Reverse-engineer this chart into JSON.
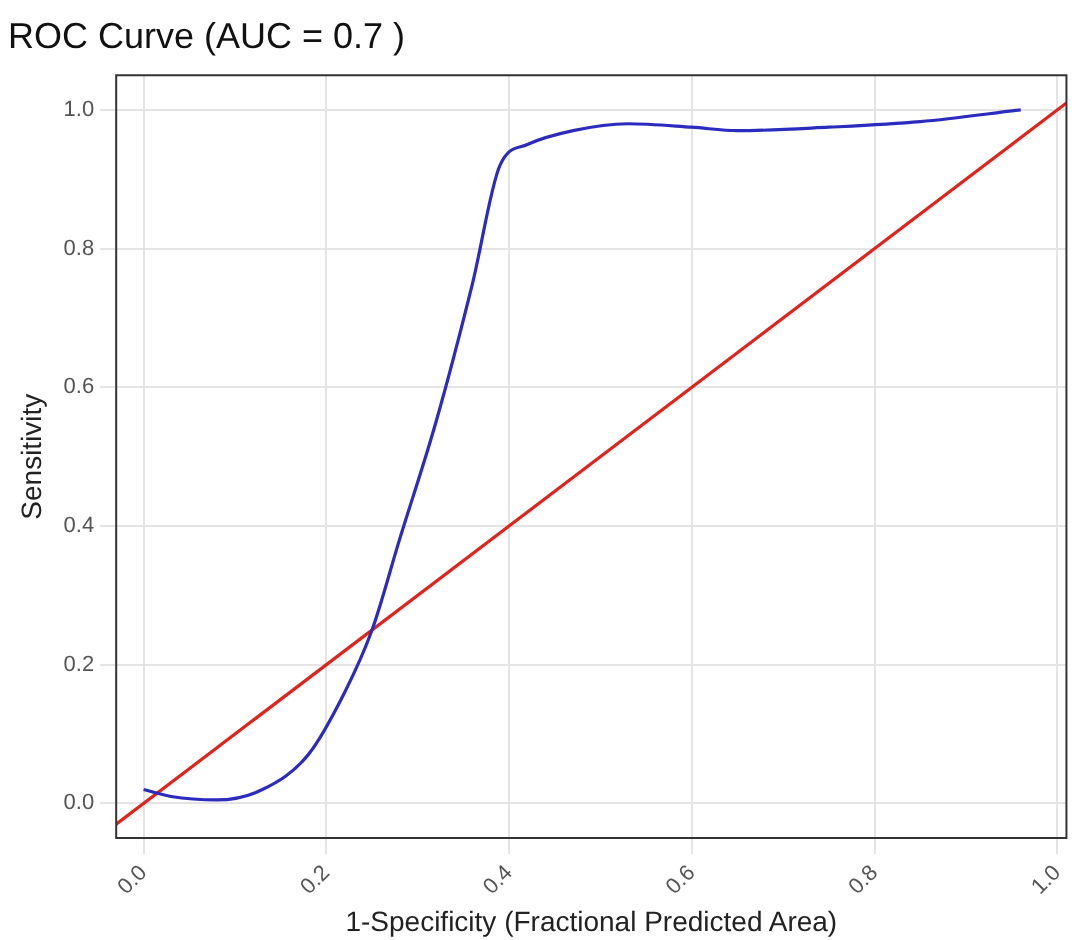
{
  "chart_data": {
    "type": "line",
    "title": "ROC Curve (AUC = 0.7 )",
    "xlabel": "1-Specificity (Fractional Predicted Area)",
    "ylabel": "Sensitivity",
    "xlim": [
      -0.03,
      1.01
    ],
    "ylim": [
      -0.05,
      1.05
    ],
    "xticks": [
      {
        "value": 0,
        "label": "0.0"
      },
      {
        "value": 0.2,
        "label": "0.2"
      },
      {
        "value": 0.4,
        "label": "0.4"
      },
      {
        "value": 0.6,
        "label": "0.6"
      },
      {
        "value": 0.8,
        "label": "0.8"
      },
      {
        "value": 1,
        "label": "1.0"
      }
    ],
    "yticks": [
      {
        "value": 0,
        "label": "0.0"
      },
      {
        "value": 0.2,
        "label": "0.2"
      },
      {
        "value": 0.4,
        "label": "0.4"
      },
      {
        "value": 0.6,
        "label": "0.6"
      },
      {
        "value": 0.8,
        "label": "0.8"
      },
      {
        "value": 1,
        "label": "1.0"
      }
    ],
    "grid": true,
    "legend": false,
    "marker": "none",
    "line_style": "solid",
    "series": [
      {
        "color": "#2b2bbf",
        "x": [
          0,
          0.03,
          0.08,
          0.13,
          0.18,
          0.22,
          0.25,
          0.28,
          0.32,
          0.36,
          0.39,
          0.42,
          0.47,
          0.53,
          0.6,
          0.65,
          0.75,
          0.85,
          0.96
        ],
        "values": [
          0.02,
          0.01,
          0.005,
          0.02,
          0.07,
          0.16,
          0.25,
          0.38,
          0.55,
          0.75,
          0.92,
          0.95,
          0.97,
          0.98,
          0.975,
          0.97,
          0.975,
          0.983,
          1.0
        ]
      },
      {
        "color": "#e0241b",
        "x": [
          -0.03,
          1.01
        ],
        "values": [
          -0.03,
          1.01
        ]
      }
    ]
  }
}
